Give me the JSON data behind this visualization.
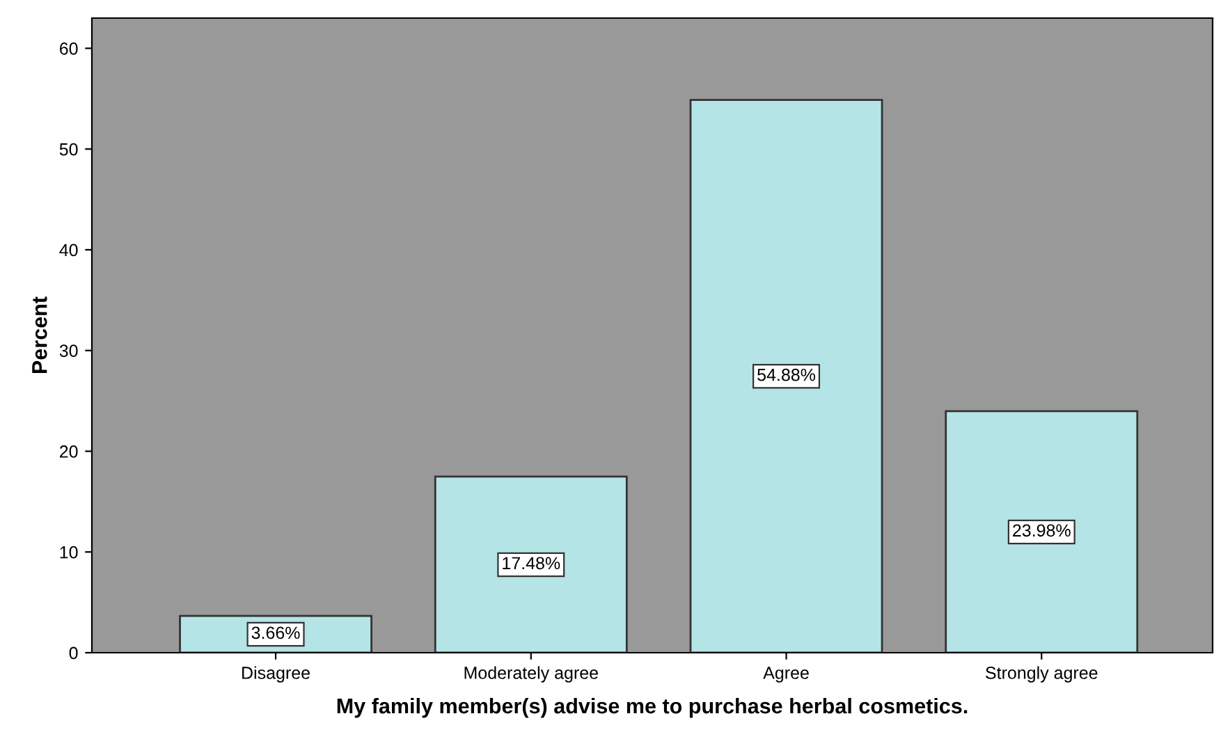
{
  "chart_data": {
    "type": "bar",
    "xlabel": "My family member(s) advise me to purchase herbal cosmetics.",
    "ylabel": "Percent",
    "categories": [
      "Disagree",
      "Moderately agree",
      "Agree",
      "Strongly agree"
    ],
    "values": [
      3.66,
      17.48,
      54.88,
      23.98
    ],
    "value_labels": [
      "3.66%",
      "17.48%",
      "54.88%",
      "23.98%"
    ],
    "color": "#b4e4e6",
    "ylim": [
      0,
      63
    ],
    "yticks": [
      0,
      10,
      20,
      30,
      40,
      50,
      60
    ],
    "grid": false,
    "legend": false
  }
}
